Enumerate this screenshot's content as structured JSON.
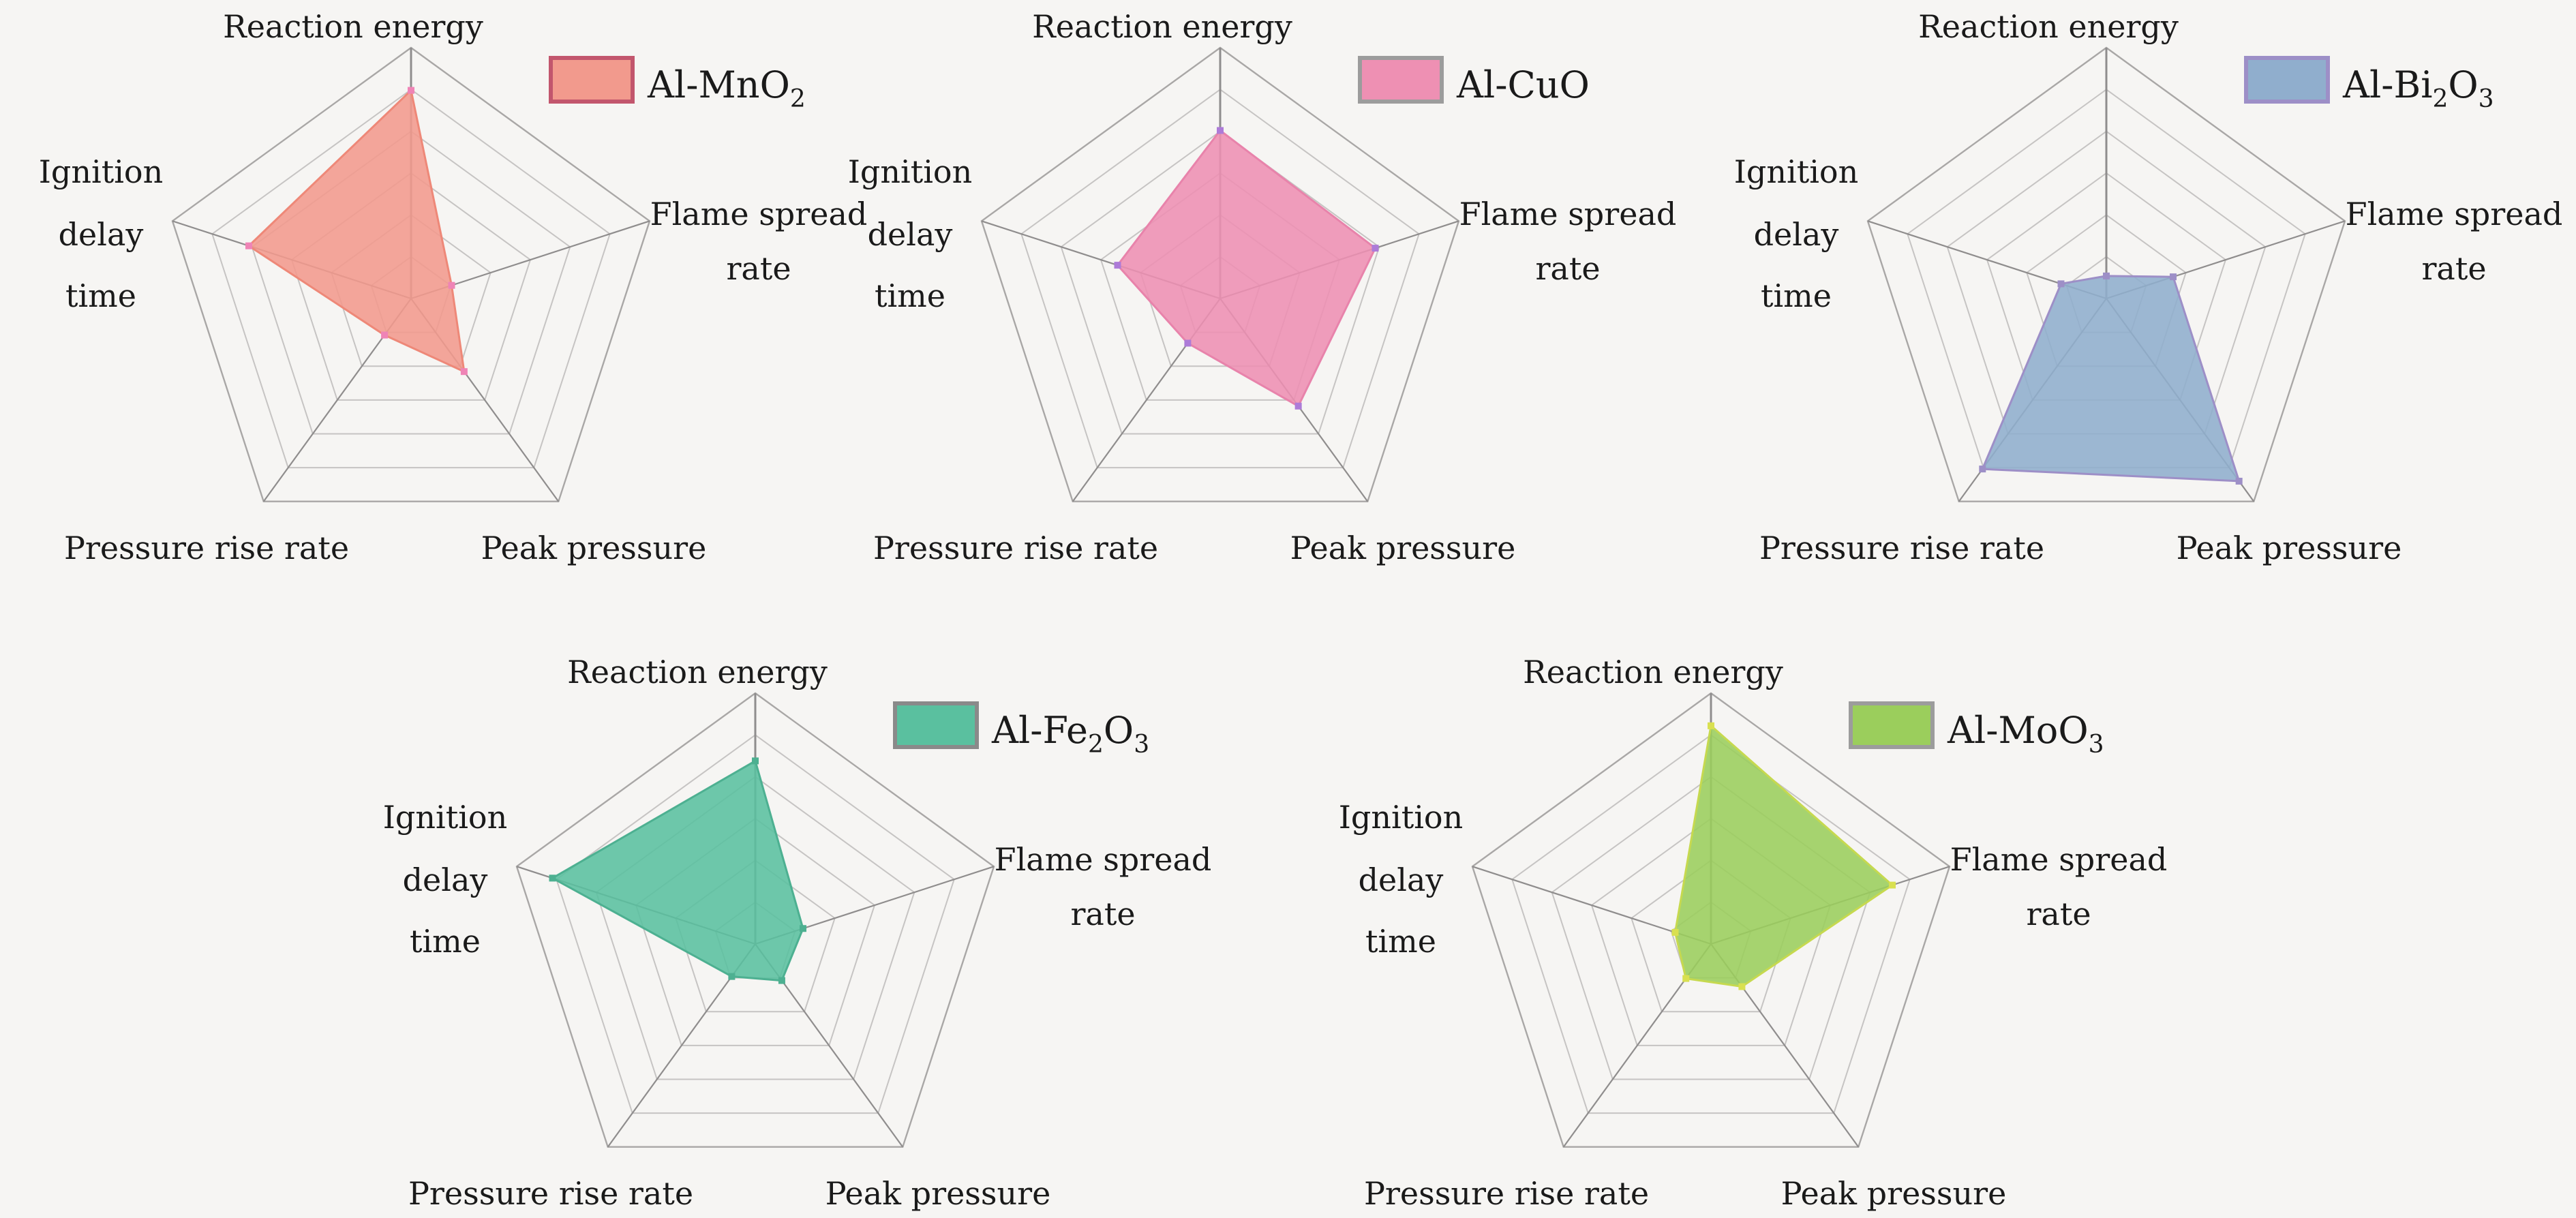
{
  "figure": {
    "background": "#f6f5f3",
    "grid_ring_color": "#c6c4c3",
    "grid_outer_color": "#a9a7a6",
    "spoke_color": "#8f8d8d",
    "text_color": "#1a1a1a"
  },
  "chart_data": {
    "type": "radar",
    "rings": 6,
    "value_range": [
      0,
      1
    ],
    "grid": true,
    "legend_position": "top-right-of-each-chart",
    "axes": [
      {
        "key": "reaction_energy",
        "label_lines": [
          "Reaction energy"
        ]
      },
      {
        "key": "flame_spread_rate",
        "label_lines": [
          "Flame spread",
          "rate"
        ]
      },
      {
        "key": "peak_pressure",
        "label_lines": [
          "Peak pressure"
        ]
      },
      {
        "key": "pressure_rise_rate",
        "label_lines": [
          "Pressure rise rate"
        ]
      },
      {
        "key": "ignition_delay_time",
        "label_lines": [
          "Ignition",
          "delay",
          "time"
        ]
      }
    ],
    "series": [
      {
        "name": "Al-MnO2",
        "label_parts": [
          {
            "text": "Al-MnO"
          },
          {
            "text": "2",
            "sub": true
          }
        ],
        "values": {
          "reaction_energy": 0.83,
          "flame_spread_rate": 0.17,
          "peak_pressure": 0.36,
          "pressure_rise_rate": 0.18,
          "ignition_delay_time": 0.68
        },
        "fill": "#f29a8d",
        "stroke": "#ee8878",
        "marker": "#ef84b6",
        "swatch_border": "#c2566d"
      },
      {
        "name": "Al-CuO",
        "label_parts": [
          {
            "text": "Al-CuO"
          }
        ],
        "values": {
          "reaction_energy": 0.67,
          "flame_spread_rate": 0.65,
          "peak_pressure": 0.53,
          "pressure_rise_rate": 0.22,
          "ignition_delay_time": 0.43
        },
        "fill": "#ee90b3",
        "stroke": "#e883ab",
        "marker": "#ad7bd8",
        "swatch_border": "#9c9c9c"
      },
      {
        "name": "Al-Bi2O3",
        "label_parts": [
          {
            "text": "Al-Bi"
          },
          {
            "text": "2",
            "sub": true
          },
          {
            "text": "O"
          },
          {
            "text": "3",
            "sub": true
          }
        ],
        "values": {
          "reaction_energy": 0.09,
          "flame_spread_rate": 0.28,
          "peak_pressure": 0.9,
          "pressure_rise_rate": 0.84,
          "ignition_delay_time": 0.19
        },
        "fill": "#90aecd",
        "stroke": "#9d8fc7",
        "marker": "#9d8fc7",
        "swatch_border": "#9d8fc7"
      },
      {
        "name": "Al-Fe2O3",
        "label_parts": [
          {
            "text": "Al-Fe"
          },
          {
            "text": "2",
            "sub": true
          },
          {
            "text": "O"
          },
          {
            "text": "3",
            "sub": true
          }
        ],
        "values": {
          "reaction_energy": 0.73,
          "flame_spread_rate": 0.2,
          "peak_pressure": 0.18,
          "pressure_rise_rate": 0.16,
          "ignition_delay_time": 0.85
        },
        "fill": "#5ac09f",
        "stroke": "#4db091",
        "marker": "#4db091",
        "swatch_border": "#8a8a8a"
      },
      {
        "name": "Al-MoO3",
        "label_parts": [
          {
            "text": "Al-MoO"
          },
          {
            "text": "3",
            "sub": true
          }
        ],
        "values": {
          "reaction_energy": 0.87,
          "flame_spread_rate": 0.76,
          "peak_pressure": 0.21,
          "pressure_rise_rate": 0.17,
          "ignition_delay_time": 0.15
        },
        "fill": "#9bce5c",
        "stroke": "#c6d94f",
        "marker": "#d9e051",
        "swatch_border": "#9c9c9c"
      }
    ]
  }
}
